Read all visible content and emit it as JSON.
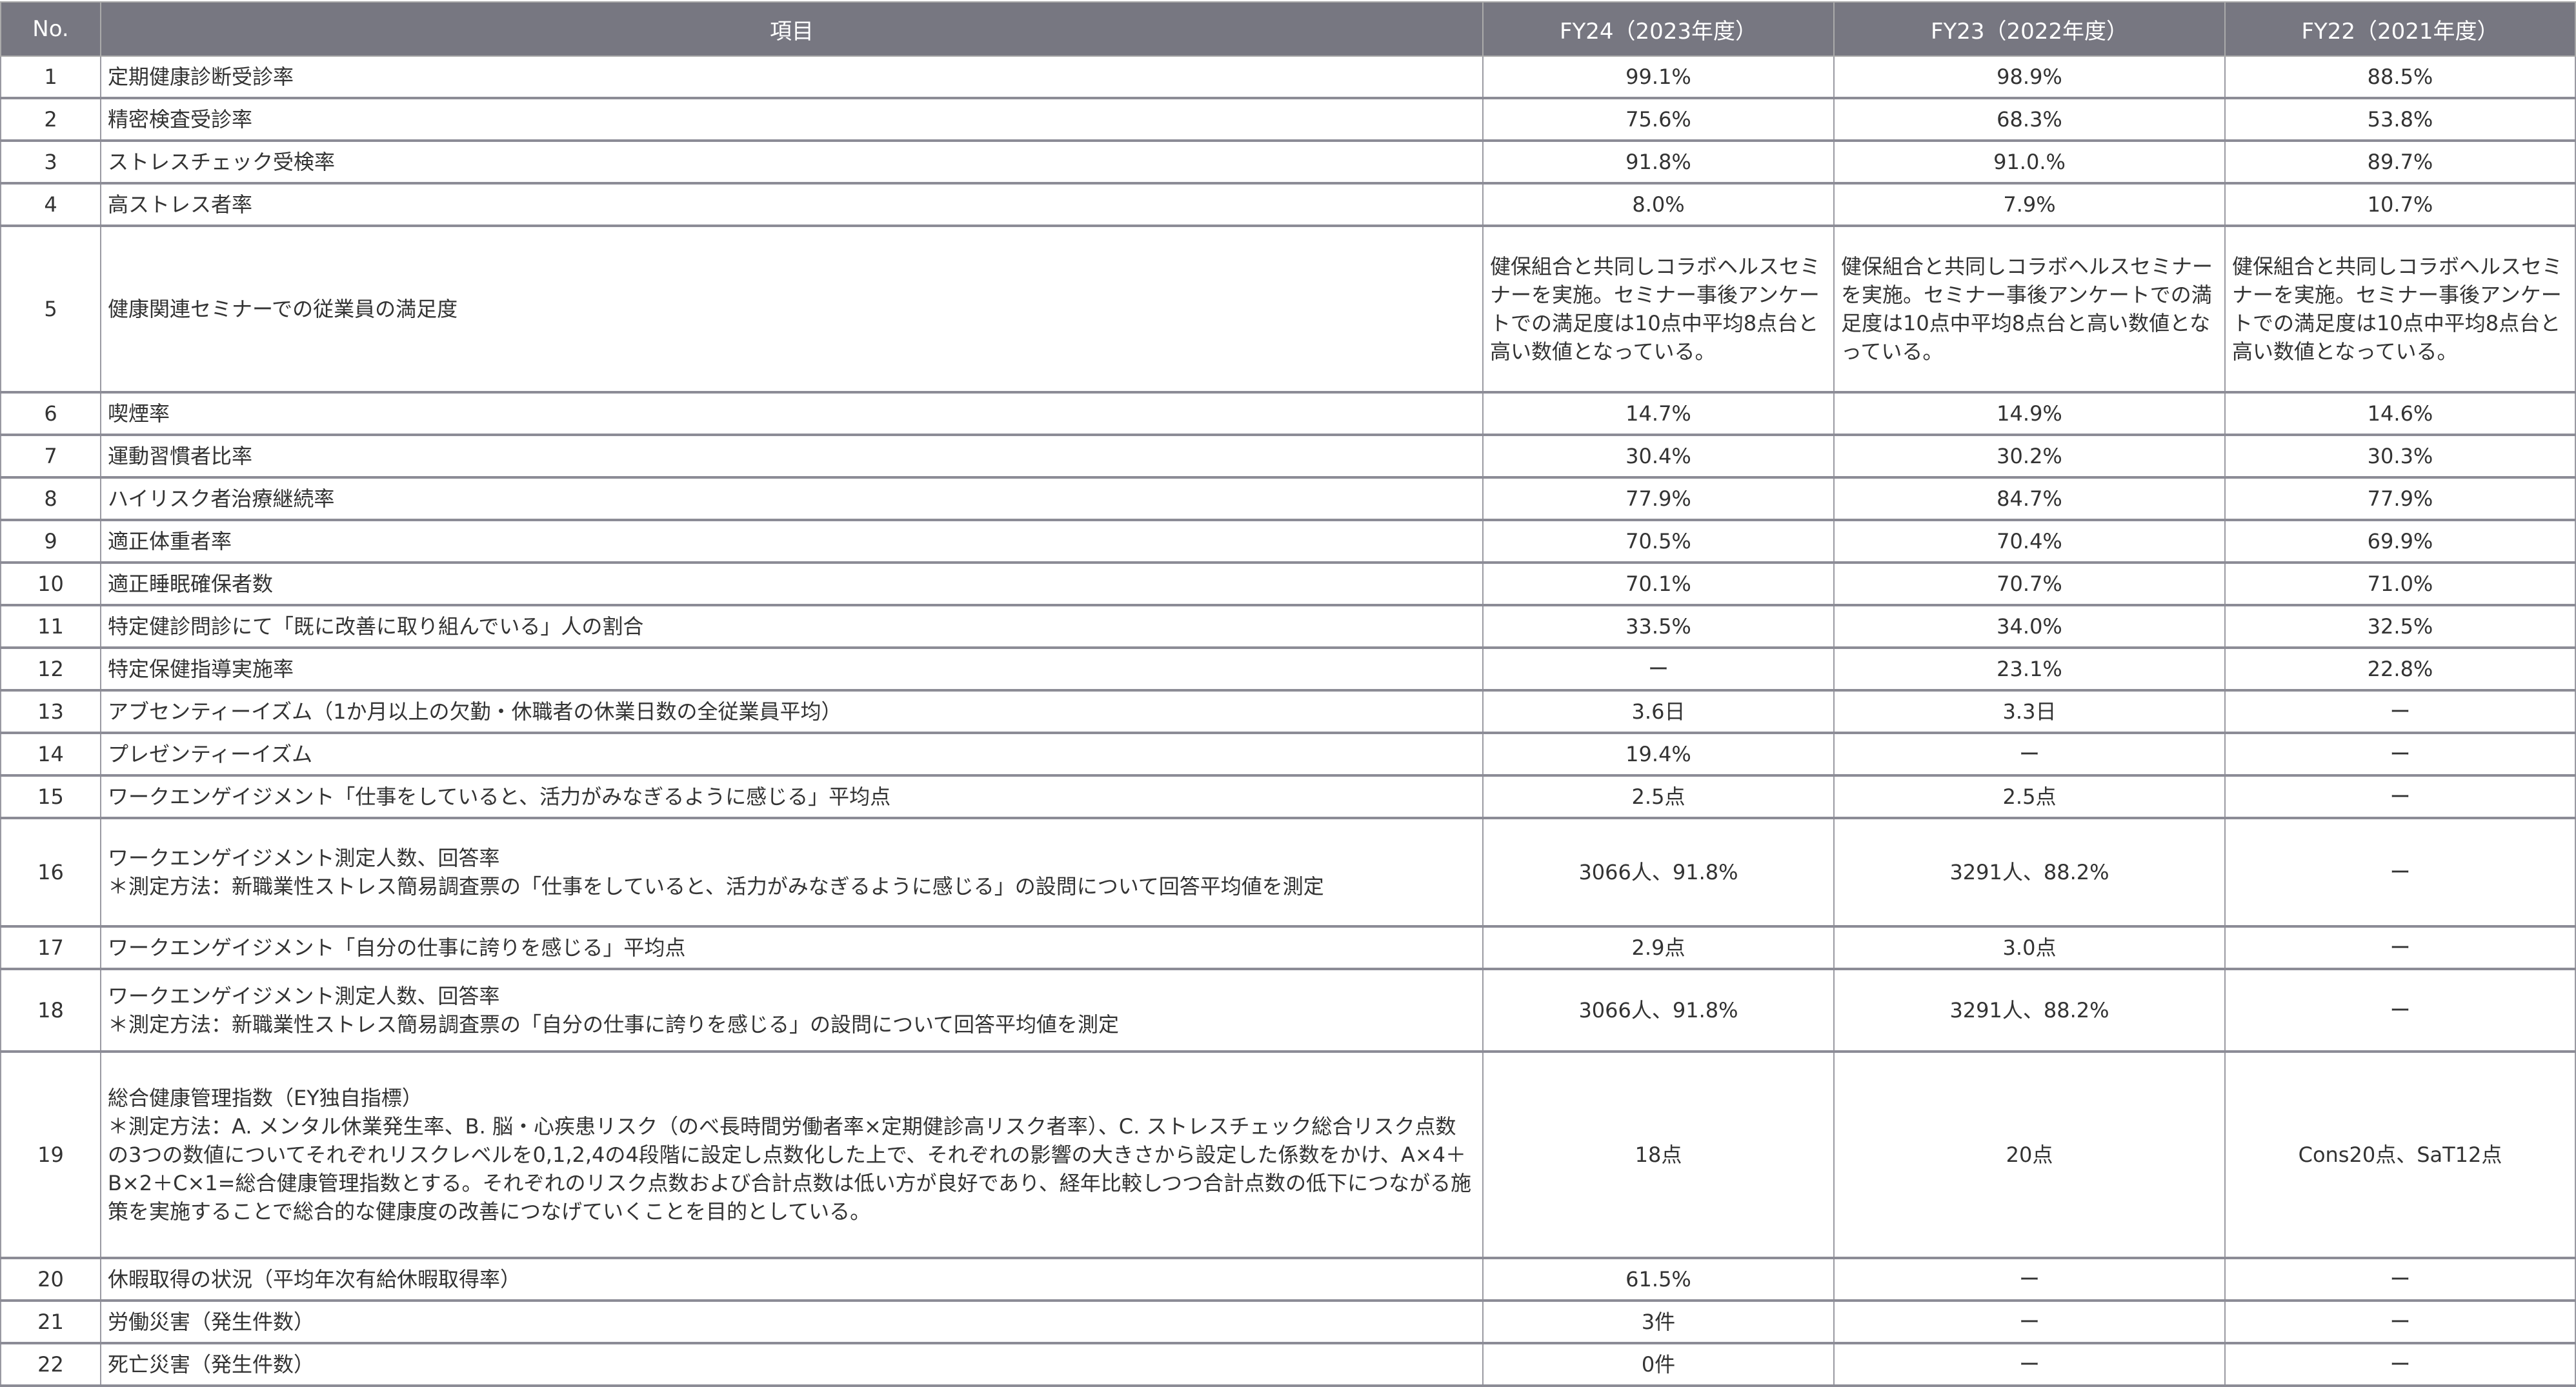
{
  "table": {
    "headers": [
      "No.",
      "項目",
      "FY24（2023年度）",
      "FY23（2022年度）",
      "FY22（2021年度）"
    ],
    "rows": [
      {
        "no": "1",
        "item": [
          "定期健康診断受診率"
        ],
        "fy24": "99.1%",
        "fy23": "98.9%",
        "fy22": "88.5%"
      },
      {
        "no": "2",
        "item": [
          "精密検査受診率"
        ],
        "fy24": "75.6%",
        "fy23": "68.3%",
        "fy22": "53.8%"
      },
      {
        "no": "3",
        "item": [
          "ストレスチェック受検率"
        ],
        "fy24": "91.8%",
        "fy23": "91.0.%",
        "fy22": "89.7%"
      },
      {
        "no": "4",
        "item": [
          "高ストレス者率"
        ],
        "fy24": "8.0%",
        "fy23": "7.9%",
        "fy22": "10.7%"
      },
      {
        "no": "5",
        "item": [
          "健康関連セミナーでの従業員の満足度"
        ],
        "fy24": "健保組合と共同しコラボヘルスセミナーを実施。セミナー事後アンケートでの満足度は10点中平均8点台と高い数値となっている。",
        "fy23": "健保組合と共同しコラボヘルスセミナーを実施。セミナー事後アンケートでの満足度は10点中平均8点台と高い数値となっている。",
        "fy22": "健保組合と共同しコラボヘルスセミナーを実施。セミナー事後アンケートでの満足度は10点中平均8点台と高い数値となっている。"
      },
      {
        "no": "6",
        "item": [
          "喫煙率"
        ],
        "fy24": "14.7%",
        "fy23": "14.9%",
        "fy22": "14.6%"
      },
      {
        "no": "7",
        "item": [
          "運動習慣者比率"
        ],
        "fy24": "30.4%",
        "fy23": "30.2%",
        "fy22": "30.3%"
      },
      {
        "no": "8",
        "item": [
          "ハイリスク者治療継続率"
        ],
        "fy24": "77.9%",
        "fy23": "84.7%",
        "fy22": "77.9%"
      },
      {
        "no": "9",
        "item": [
          "適正体重者率"
        ],
        "fy24": "70.5%",
        "fy23": "70.4%",
        "fy22": "69.9%"
      },
      {
        "no": "10",
        "item": [
          "適正睡眠確保者数"
        ],
        "fy24": "70.1%",
        "fy23": "70.7%",
        "fy22": "71.0%"
      },
      {
        "no": "11",
        "item": [
          "特定健診問診にて「既に改善に取り組んでいる」人の割合"
        ],
        "fy24": "33.5%",
        "fy23": "34.0%",
        "fy22": "32.5%"
      },
      {
        "no": "12",
        "item": [
          "特定保健指導実施率"
        ],
        "fy24": "ー",
        "fy23": "23.1%",
        "fy22": "22.8%"
      },
      {
        "no": "13",
        "item": [
          "アブセンティーイズム（1か月以上の欠勤・休職者の休業日数の全従業員平均）"
        ],
        "fy24": "3.6日",
        "fy23": "3.3日",
        "fy22": "ー"
      },
      {
        "no": "14",
        "item": [
          "プレゼンティーイズム"
        ],
        "fy24": "19.4%",
        "fy23": "ー",
        "fy22": "ー"
      },
      {
        "no": "15",
        "item": [
          "ワークエンゲイジメント「仕事をしていると、活力がみなぎるように感じる」平均点"
        ],
        "fy24": "2.5点",
        "fy23": "2.5点",
        "fy22": "ー"
      },
      {
        "no": "16",
        "item": [
          "ワークエンゲイジメント測定人数、回答率",
          "＊測定方法：新職業性ストレス簡易調査票の「仕事をしていると、活力がみなぎるように感じる」の設問について回答平均値を測定"
        ],
        "fy24": "3066人、91.8%",
        "fy23": "3291人、88.2%",
        "fy22": "ー"
      },
      {
        "no": "17",
        "item": [
          "ワークエンゲイジメント「自分の仕事に誇りを感じる」平均点"
        ],
        "fy24": "2.9点",
        "fy23": "3.0点",
        "fy22": "ー"
      },
      {
        "no": "18",
        "item": [
          "ワークエンゲイジメント測定人数、回答率",
          "＊測定方法：新職業性ストレス簡易調査票の「自分の仕事に誇りを感じる」の設問について回答平均値を測定"
        ],
        "fy24": "3066人、91.8%",
        "fy23": "3291人、88.2%",
        "fy22": "ー"
      },
      {
        "no": "19",
        "item": [
          "総合健康管理指数（EY独自指標）",
          "＊測定方法：A. メンタル休業発生率、B. 脳・心疾患リスク（のべ長時間労働者率×定期健診高リスク者率）、C. ストレスチェック総合リスク点数の3つの数値についてそれぞれリスクレベルを0,1,2,4の4段階に設定し点数化した上で、それぞれの影響の大きさから設定した係数をかけ、A×4＋B×2＋C×1=総合健康管理指数とする。それぞれのリスク点数および合計点数は低い方が良好であり、経年比較しつつ合計点数の低下につながる施策を実施することで総合的な健康度の改善につなげていくことを目的としている。"
        ],
        "fy24": "18点",
        "fy23": "20点",
        "fy22": "Cons20点、SaT12点"
      },
      {
        "no": "20",
        "item": [
          "休暇取得の状況（平均年次有給休暇取得率）"
        ],
        "fy24": "61.5%",
        "fy23": "ー",
        "fy22": "ー"
      },
      {
        "no": "21",
        "item": [
          "労働災害（発生件数）"
        ],
        "fy24": "3件",
        "fy23": "ー",
        "fy22": "ー"
      },
      {
        "no": "22",
        "item": [
          "死亡災害（発生件数）"
        ],
        "fy24": "0件",
        "fy23": "ー",
        "fy22": "ー"
      }
    ]
  },
  "colors": {
    "header_bg": "#777781",
    "header_text": "#ffffff",
    "border": "#8c8c96"
  }
}
